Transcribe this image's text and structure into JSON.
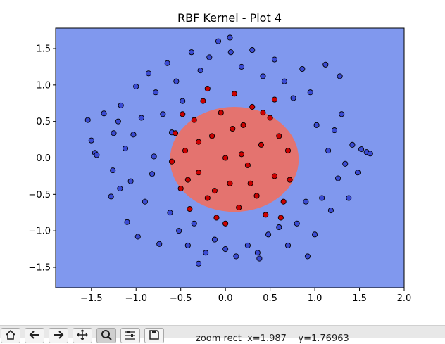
{
  "window": {
    "toolbar": {
      "buttons": [
        {
          "icon": "home-icon"
        },
        {
          "icon": "back-arrow-icon"
        },
        {
          "icon": "forward-arrow-icon"
        },
        {
          "icon": "pan-icon"
        },
        {
          "icon": "zoom-icon",
          "active": true
        },
        {
          "icon": "configure-subplots-icon"
        },
        {
          "icon": "save-icon"
        }
      ],
      "status_text": "zoom rect  x=1.987    y=1.76963"
    }
  },
  "chart_data": {
    "type": "scatter",
    "title": "RBF Kernel - Plot 4",
    "xlabel": "",
    "ylabel": "",
    "xlim": [
      -1.9,
      2.0
    ],
    "ylim": [
      -1.78,
      1.78
    ],
    "xticks": [
      -1.5,
      -1.0,
      -0.5,
      0.0,
      0.5,
      1.0,
      1.5,
      2.0
    ],
    "xtick_labels": [
      "−1.5",
      "−1.0",
      "−0.5",
      "0.0",
      "0.5",
      "1.0",
      "1.5",
      "2.0"
    ],
    "yticks": [
      1.5,
      1.0,
      0.5,
      0.0,
      -0.5,
      -1.0,
      -1.5
    ],
    "ytick_labels": [
      "1.5",
      "1.0",
      "0.5",
      "0.0",
      "−0.5",
      "−1.0",
      "−1.5"
    ],
    "grid": false,
    "legend": null,
    "decision_regions": {
      "background_class": {
        "label": 0,
        "color": "#8098ee"
      },
      "inner_region": {
        "label": 1,
        "color": "#e4736f",
        "shape": "circle",
        "center": [
          0.1,
          -0.02
        ],
        "radius": 0.72
      }
    },
    "series": [
      {
        "class": 0,
        "color": "#3b4bd4",
        "edgecolor": "#000000",
        "points": [
          [
            -1.54,
            0.52
          ],
          [
            -1.5,
            0.24
          ],
          [
            -1.46,
            0.07
          ],
          [
            -1.44,
            0.04
          ],
          [
            -1.36,
            0.61
          ],
          [
            -1.28,
            -0.53
          ],
          [
            -1.25,
            0.34
          ],
          [
            -1.26,
            -0.17
          ],
          [
            -1.18,
            -0.42
          ],
          [
            -1.17,
            0.72
          ],
          [
            -1.12,
            0.13
          ],
          [
            -1.1,
            -0.88
          ],
          [
            -1.06,
            -0.32
          ],
          [
            -1.03,
            0.32
          ],
          [
            -1.0,
            0.98
          ],
          [
            -0.98,
            -1.08
          ],
          [
            -0.94,
            0.55
          ],
          [
            -0.9,
            -0.6
          ],
          [
            -0.86,
            1.16
          ],
          [
            -0.82,
            -0.22
          ],
          [
            -0.8,
            0.02
          ],
          [
            -0.78,
            0.9
          ],
          [
            -0.74,
            -1.18
          ],
          [
            -0.7,
            0.6
          ],
          [
            -0.65,
            1.3
          ],
          [
            -0.62,
            -0.75
          ],
          [
            -0.6,
            0.35
          ],
          [
            -0.55,
            1.05
          ],
          [
            -0.52,
            -1.0
          ],
          [
            -0.48,
            0.78
          ],
          [
            -0.42,
            -1.2
          ],
          [
            -0.38,
            1.45
          ],
          [
            -0.35,
            -0.9
          ],
          [
            -0.28,
            1.2
          ],
          [
            -0.22,
            -1.3
          ],
          [
            -0.18,
            1.38
          ],
          [
            -0.12,
            -1.12
          ],
          [
            -0.08,
            1.6
          ],
          [
            0.0,
            -1.25
          ],
          [
            0.06,
            1.45
          ],
          [
            0.12,
            -1.35
          ],
          [
            0.18,
            1.25
          ],
          [
            0.25,
            -1.2
          ],
          [
            0.3,
            1.48
          ],
          [
            0.36,
            -1.3
          ],
          [
            0.42,
            1.12
          ],
          [
            0.48,
            -1.05
          ],
          [
            0.55,
            1.35
          ],
          [
            0.6,
            -0.95
          ],
          [
            0.66,
            1.05
          ],
          [
            0.7,
            -1.2
          ],
          [
            0.76,
            0.82
          ],
          [
            0.8,
            -0.9
          ],
          [
            0.86,
            1.22
          ],
          [
            0.9,
            -0.6
          ],
          [
            0.95,
            0.9
          ],
          [
            1.0,
            -1.05
          ],
          [
            1.02,
            0.45
          ],
          [
            1.08,
            -0.55
          ],
          [
            1.12,
            1.28
          ],
          [
            1.15,
            0.1
          ],
          [
            1.18,
            -0.72
          ],
          [
            1.22,
            0.38
          ],
          [
            1.26,
            -0.28
          ],
          [
            1.3,
            0.6
          ],
          [
            1.34,
            -0.08
          ],
          [
            1.38,
            -0.55
          ],
          [
            1.42,
            0.18
          ],
          [
            1.48,
            -0.2
          ],
          [
            1.52,
            0.12
          ],
          [
            1.58,
            0.08
          ],
          [
            1.62,
            0.06
          ],
          [
            -0.3,
            -1.45
          ],
          [
            0.38,
            -1.38
          ],
          [
            0.05,
            1.65
          ],
          [
            1.28,
            1.12
          ],
          [
            -1.2,
            0.5
          ],
          [
            0.92,
            -1.35
          ]
        ]
      },
      {
        "class": 1,
        "color": "#cc0000",
        "edgecolor": "#000000",
        "points": [
          [
            -0.56,
            0.34
          ],
          [
            -0.5,
            -0.42
          ],
          [
            -0.45,
            0.1
          ],
          [
            -0.4,
            -0.7
          ],
          [
            -0.35,
            0.52
          ],
          [
            -0.3,
            -0.2
          ],
          [
            -0.25,
            0.78
          ],
          [
            -0.2,
            -0.55
          ],
          [
            -0.15,
            0.3
          ],
          [
            -0.1,
            -0.82
          ],
          [
            -0.05,
            0.62
          ],
          [
            0.0,
            0.0
          ],
          [
            0.05,
            -0.35
          ],
          [
            0.1,
            0.88
          ],
          [
            0.15,
            -0.68
          ],
          [
            0.2,
            0.45
          ],
          [
            0.25,
            -0.1
          ],
          [
            0.3,
            0.7
          ],
          [
            0.35,
            -0.52
          ],
          [
            0.4,
            0.18
          ],
          [
            0.45,
            -0.78
          ],
          [
            0.5,
            0.55
          ],
          [
            0.55,
            -0.25
          ],
          [
            0.6,
            0.3
          ],
          [
            0.65,
            -0.6
          ],
          [
            0.7,
            0.1
          ],
          [
            0.72,
            -0.3
          ],
          [
            -0.6,
            -0.05
          ],
          [
            -0.48,
            0.6
          ],
          [
            0.0,
            -0.9
          ],
          [
            0.08,
            0.4
          ],
          [
            -0.3,
            0.22
          ],
          [
            0.28,
            -0.35
          ],
          [
            0.42,
            0.62
          ],
          [
            -0.12,
            -0.45
          ],
          [
            0.18,
            0.05
          ],
          [
            -0.42,
            -0.3
          ],
          [
            0.55,
            0.8
          ],
          [
            -0.2,
            0.95
          ],
          [
            0.62,
            -0.82
          ]
        ]
      }
    ]
  }
}
